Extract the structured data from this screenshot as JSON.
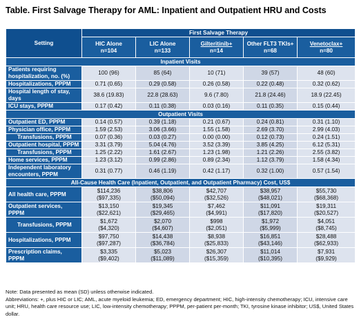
{
  "title": "Table. First Salvage Therapy for AML: Inpatient and Outpatient HRU and Costs",
  "header": {
    "setting": "Setting",
    "group": "First Salvage Therapy",
    "columns": [
      {
        "name": "HIC Alone",
        "n": "n=104"
      },
      {
        "name": "LIC Alone",
        "n": "n=133"
      },
      {
        "name": "Gilteritinib+",
        "n": "n=14"
      },
      {
        "name": "Other FLT3 TKIs+",
        "n": "n=68"
      },
      {
        "name": "Venetoclax+",
        "n": "n=80"
      }
    ]
  },
  "sections": [
    {
      "title": "Inpatient Visits",
      "rows": [
        {
          "label": "Patients requiring hospitalization, no. (%)",
          "values": [
            "100 (96)",
            "85 (64)",
            "10 (71)",
            "39 (57)",
            "48 (60)"
          ]
        },
        {
          "label": "Hospitalizations, PPPM",
          "values": [
            "0.71 (0.65)",
            "0.29 (0.58)",
            "0.26 (0.58)",
            "0.22 (0.48)",
            "0.32 (0.62)"
          ]
        },
        {
          "label": "Hospital length of stay, days",
          "values": [
            "38.6 (19.83)",
            "22.8 (28.63)",
            "9.6 (7.80)",
            "21.8 (24.46)",
            "18.9 (22.45)"
          ]
        },
        {
          "label": "ICU stays, PPPM",
          "values": [
            "0.17 (0.42)",
            "0.11 (0.38)",
            "0.03 (0.16)",
            "0.11 (0.35)",
            "0.15 (0.44)"
          ]
        }
      ]
    },
    {
      "title": "Outpatient Visits",
      "rows": [
        {
          "label": "Outpatient ED, PPPM",
          "values": [
            "0.14 (0.57)",
            "0.39 (1.18)",
            "0.21 (0.67)",
            "0.24 (0.81)",
            "0.31 (1.10)"
          ]
        },
        {
          "label": "Physician office, PPPM",
          "values": [
            "1.59 (2.53)",
            "3.06 (3.66)",
            "1.55 (1.58)",
            "2.69 (3.70)",
            "2.99 (4.03)"
          ]
        },
        {
          "label": "Transfusions, PPPM",
          "indent": true,
          "values": [
            "0.07 (0.36)",
            "0.03 (0.27)",
            "0.00 (0.00)",
            "0.12 (0.73)",
            "0.24 (1.51)"
          ]
        },
        {
          "label": "Outpatient hospital, PPPM",
          "values": [
            "3.31 (3.79)",
            "5.04 (4.76)",
            "3.52 (3.39)",
            "3.85 (4.25)",
            "6.12 (5.31)"
          ]
        },
        {
          "label": "Transfusions, PPPM",
          "indent": true,
          "values": [
            "1.25 (2.22)",
            "1.61 (2.67)",
            "1.23 (1.98)",
            "1.21 (2.26)",
            "2.55 (3.82)"
          ]
        },
        {
          "label": "Home services, PPPM",
          "values": [
            "1.23 (3.12)",
            "0.99 (2.86)",
            "0.89 (2.34)",
            "1.12 (3.79)",
            "1.58 (4.34)"
          ]
        },
        {
          "label": "Independent laboratory encounters, PPPM",
          "values": [
            "0.31 (0.77)",
            "0.46 (1.19)",
            "0.42 (1.17)",
            "0.32 (1.00)",
            "0.57 (1.54)"
          ]
        }
      ]
    },
    {
      "title": "All-Cause Health Care (Inpatient, Outpatient, and Outpatient Pharmacy) Cost, US$",
      "rows": [
        {
          "label": "All health care, PPPM",
          "values": [
            "$114,236\n($97,335)",
            "$38,806\n($50,094)",
            "$42,707\n($32,526)",
            "$38,957\n($48,021)",
            "$55,730\n($68,368)"
          ]
        },
        {
          "label": "Outpatient services, PPPM",
          "values": [
            "$13,150\n($22,621)",
            "$19,345\n($29,465)",
            "$7,462\n($4,991)",
            "$11,091\n($17,820)",
            "$19,311\n($20,527)"
          ]
        },
        {
          "label": "Transfusions, PPPM",
          "indent": true,
          "values": [
            "$1,672\n($4,320)",
            "$2,070\n($4,607)",
            "$998\n($2,051)",
            "$1,972\n($5,999)",
            "$4,051\n($8,745)"
          ]
        },
        {
          "label": "Hospitalizations, PPPM",
          "values": [
            "$97,750\n($97,287)",
            "$14,438\n($36,784)",
            "$8,938\n($25,833)",
            "$16,851\n($43,146)",
            "$28,488\n($62,933)"
          ]
        },
        {
          "label": "Prescription claims, PPPM",
          "values": [
            "$3,335\n($9,402)",
            "$5,023\n($11,089)",
            "$26,307\n($15,359)",
            "$11,014\n($10,395)",
            "$7,931\n($9,929)"
          ]
        }
      ]
    }
  ],
  "notes": [
    "Note: Data presented as mean (SD) unless otherwise indicated.",
    "Abbreviations: +, plus HIC or LIC; AML, acute myeloid leukemia; ED, emergency department; HIC, high-intensity chemotherapy; ICU, intensive care unit; HRU, health care resource use; LIC, low-intensity chemotherapy; PPPM, per-patient per-month; TKI, tyrosine kinase inhibitor; US$, United States dollar."
  ],
  "colors": {
    "header_dark": "#0f4f8f",
    "header": "#1a5e9f",
    "cell": "#dde3ee"
  }
}
